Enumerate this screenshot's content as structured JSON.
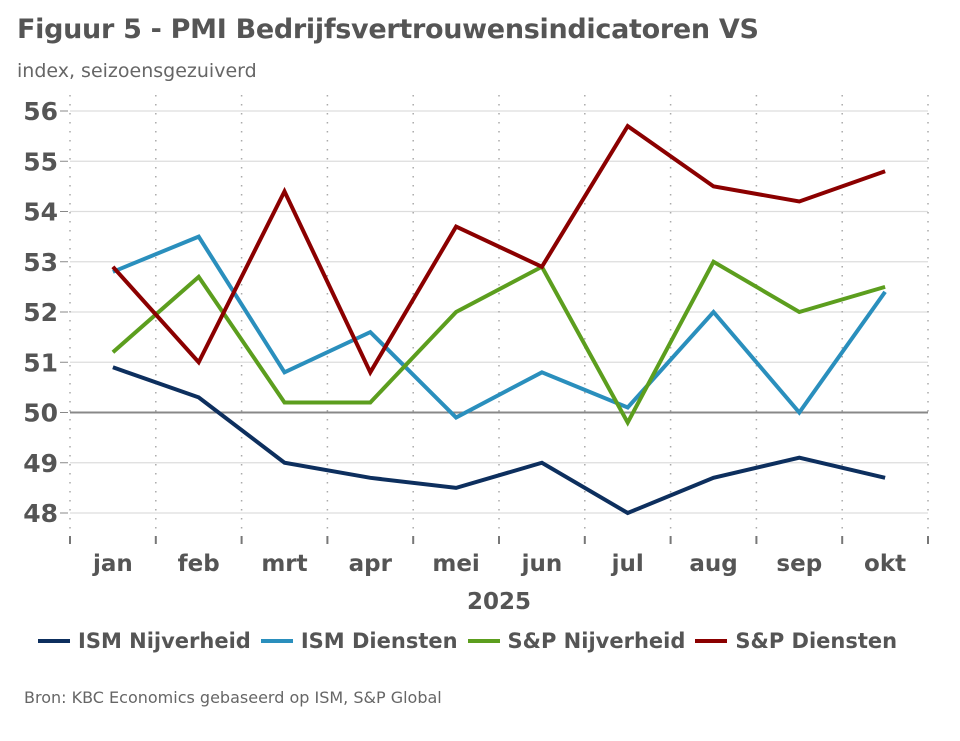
{
  "header": {
    "title": "Figuur 5 - PMI Bedrijfsvertrouwensindicatoren VS",
    "subtitle": "index, seizoensgezuiverd"
  },
  "footer": {
    "source": "Bron: KBC Economics gebaseerd op ISM, S&P Global"
  },
  "chart_data": {
    "type": "line",
    "title": "Figuur 5 - PMI Bedrijfsvertrouwensindicatoren VS",
    "subtitle": "index, seizoensgezuiverd",
    "xlabel": "2025",
    "ylabel": "",
    "categories": [
      "jan",
      "feb",
      "mrt",
      "apr",
      "mei",
      "jun",
      "jul",
      "aug",
      "sep",
      "okt"
    ],
    "ylim": [
      48,
      56
    ],
    "yticks": [
      48,
      49,
      50,
      51,
      52,
      53,
      54,
      55,
      56
    ],
    "reference_line": 50,
    "grid": true,
    "legend_position": "bottom",
    "series": [
      {
        "name": "ISM Nijverheid",
        "color": "#0d2f5e",
        "values": [
          50.9,
          50.3,
          49.0,
          48.7,
          48.5,
          49.0,
          48.0,
          48.7,
          49.1,
          48.7
        ]
      },
      {
        "name": "ISM Diensten",
        "color": "#2a8fbd",
        "values": [
          52.8,
          53.5,
          50.8,
          51.6,
          49.9,
          50.8,
          50.1,
          52.0,
          50.0,
          52.4
        ]
      },
      {
        "name": "S&P Nijverheid",
        "color": "#5c9e1e",
        "values": [
          51.2,
          52.7,
          50.2,
          50.2,
          52.0,
          52.9,
          49.8,
          53.0,
          52.0,
          52.5
        ]
      },
      {
        "name": "S&P Diensten",
        "color": "#8b0000",
        "values": [
          52.9,
          51.0,
          54.4,
          50.8,
          53.7,
          52.9,
          55.7,
          54.5,
          54.2,
          54.8
        ]
      }
    ]
  }
}
